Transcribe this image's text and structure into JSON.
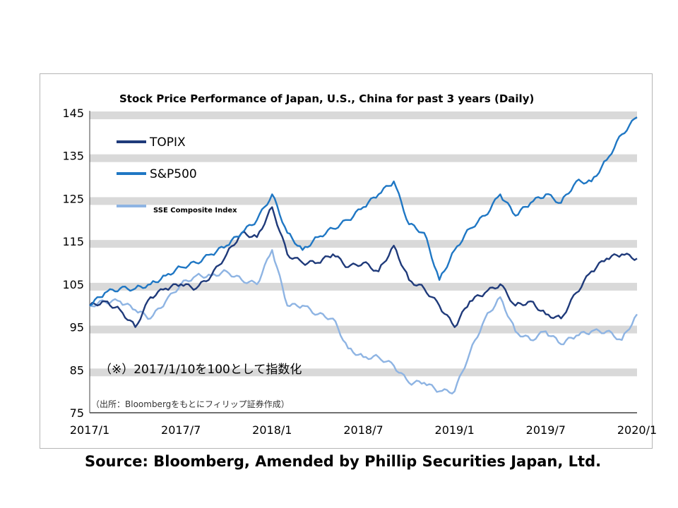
{
  "source_note": "Source: Bloomberg, Amended by Phillip Securities Japan, Ltd.",
  "chart_data": {
    "type": "line",
    "title": "Stock Price Performance of Japan, U.S., China for past 3 years (Daily)",
    "xlabel": "",
    "ylabel": "",
    "x_ticks": [
      "2017/1",
      "2017/7",
      "2018/1",
      "2018/7",
      "2019/1",
      "2019/7",
      "2020/1"
    ],
    "x_range": [
      "2017-01",
      "2020-01"
    ],
    "y_ticks": [
      75,
      85,
      95,
      105,
      115,
      125,
      135,
      145
    ],
    "ylim": [
      75,
      145
    ],
    "grid": "horizontal",
    "legend_position": "top-left",
    "annotation_main": "（※）2017/1/10を100として指数化",
    "annotation_source": "（出所：Bloombergをもとにフィリップ証券作成）",
    "x": [
      "2017-01",
      "2017-02",
      "2017-03",
      "2017-04",
      "2017-05",
      "2017-06",
      "2017-07",
      "2017-08",
      "2017-09",
      "2017-10",
      "2017-11",
      "2017-12",
      "2018-01",
      "2018-02",
      "2018-03",
      "2018-04",
      "2018-05",
      "2018-06",
      "2018-07",
      "2018-08",
      "2018-09",
      "2018-10",
      "2018-11",
      "2018-12",
      "2019-01",
      "2019-02",
      "2019-03",
      "2019-04",
      "2019-05",
      "2019-06",
      "2019-07",
      "2019-08",
      "2019-09",
      "2019-10",
      "2019-11",
      "2019-12",
      "2020-01"
    ],
    "series": [
      {
        "name": "TOPIX",
        "color": "#1f3a7a",
        "values": [
          100,
          101,
          99,
          95,
          102,
          104,
          105,
          104,
          107,
          112,
          117,
          116,
          123,
          112,
          110,
          110,
          112,
          109,
          110,
          108,
          114,
          106,
          104,
          100,
          95,
          101,
          103,
          105,
          100,
          101,
          98,
          97,
          103,
          108,
          111,
          112,
          111
        ]
      },
      {
        "name": "S&P500",
        "color": "#1f77c4",
        "values": [
          100,
          103,
          104,
          104,
          105,
          107,
          109,
          110,
          112,
          114,
          117,
          120,
          126,
          117,
          113,
          116,
          118,
          120,
          123,
          126,
          129,
          119,
          117,
          106,
          113,
          118,
          121,
          126,
          121,
          124,
          126,
          124,
          129,
          129,
          134,
          140,
          144
        ]
      },
      {
        "name": "SSE Composite Index",
        "color": "#8eb4e3",
        "values": [
          100,
          101,
          101,
          99,
          97,
          101,
          105,
          107,
          107,
          108,
          106,
          105,
          113,
          100,
          100,
          98,
          97,
          90,
          88,
          88,
          86,
          82,
          82,
          80,
          80,
          89,
          97,
          102,
          94,
          92,
          94,
          91,
          93,
          94,
          94,
          92,
          98
        ]
      }
    ]
  }
}
